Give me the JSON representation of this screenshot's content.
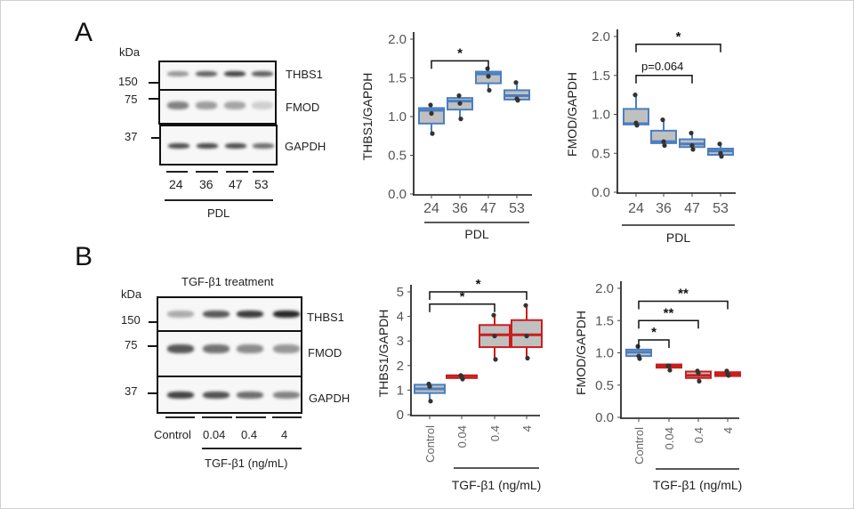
{
  "panels": {
    "A": {
      "letter": "A",
      "blot": {
        "kda_label": "kDa",
        "markers": [
          "150",
          "75",
          "37"
        ],
        "proteins": [
          "THBS1",
          "FMOD",
          "GAPDH"
        ],
        "lanes": [
          "24",
          "36",
          "47",
          "53"
        ],
        "group_label": "PDL",
        "band_intensity": {
          "THBS1": [
            0.45,
            0.7,
            0.85,
            0.72
          ],
          "FMOD": [
            0.55,
            0.42,
            0.38,
            0.18
          ],
          "GAPDH": [
            0.8,
            0.82,
            0.8,
            0.65
          ]
        }
      }
    },
    "B": {
      "letter": "B",
      "blot": {
        "title": "TGF-β1 treatment",
        "kda_label": "kDa",
        "markers": [
          "150",
          "75",
          "37"
        ],
        "proteins": [
          "THBS1",
          "FMOD",
          "GAPDH"
        ],
        "lanes": [
          "Control",
          "0.04",
          "0.4",
          "4"
        ],
        "group_label": "TGF-β1  (ng/mL)",
        "band_intensity": {
          "THBS1": [
            0.35,
            0.75,
            0.88,
            0.98
          ],
          "FMOD": [
            0.75,
            0.62,
            0.5,
            0.45
          ],
          "GAPDH": [
            0.85,
            0.78,
            0.65,
            0.55
          ]
        }
      }
    }
  },
  "chart_data": [
    {
      "id": "A-THBS1",
      "type": "box",
      "ylabel": "THBS1/GAPDH",
      "xlabel": "PDL",
      "categories": [
        "24",
        "36",
        "47",
        "53"
      ],
      "ylim": [
        0,
        2.0
      ],
      "yticks": [
        "0.0",
        "0.5",
        "1.0",
        "1.5",
        "2.0"
      ],
      "ytick_values": [
        0,
        0.5,
        1.0,
        1.5,
        2.0
      ],
      "xtick_rotation": "horizontal",
      "colors": [
        "#4a7fc1",
        "#4a7fc1",
        "#4a7fc1",
        "#4a7fc1"
      ],
      "boxes": [
        {
          "q1": 0.91,
          "median": 1.08,
          "q3": 1.11,
          "min": 0.78,
          "max": 1.15,
          "points": [
            1.15,
            1.04,
            0.78
          ]
        },
        {
          "q1": 1.09,
          "median": 1.2,
          "q3": 1.24,
          "min": 0.97,
          "max": 1.27,
          "points": [
            1.27,
            1.17,
            0.97
          ]
        },
        {
          "q1": 1.43,
          "median": 1.55,
          "q3": 1.58,
          "min": 1.34,
          "max": 1.62,
          "points": [
            1.62,
            1.52,
            1.34
          ]
        },
        {
          "q1": 1.22,
          "median": 1.27,
          "q3": 1.34,
          "min": 1.21,
          "max": 1.44,
          "points": [
            1.44,
            1.23,
            1.21
          ]
        }
      ],
      "annotations": [
        {
          "from": 0,
          "to": 2,
          "label": "*",
          "level": 1.72
        }
      ]
    },
    {
      "id": "A-FMOD",
      "type": "box",
      "ylabel": "FMOD/GAPDH",
      "xlabel": "PDL",
      "categories": [
        "24",
        "36",
        "47",
        "53"
      ],
      "ylim": [
        0,
        2.0
      ],
      "yticks": [
        "0.0",
        "0.5",
        "1.0",
        "1.5",
        "2.0"
      ],
      "ytick_values": [
        0,
        0.5,
        1.0,
        1.5,
        2.0
      ],
      "xtick_rotation": "horizontal",
      "colors": [
        "#4a7fc1",
        "#4a7fc1",
        "#4a7fc1",
        "#4a7fc1"
      ],
      "boxes": [
        {
          "q1": 0.87,
          "median": 0.88,
          "q3": 1.07,
          "min": 0.86,
          "max": 1.25,
          "points": [
            1.25,
            0.89,
            0.86
          ]
        },
        {
          "q1": 0.63,
          "median": 0.65,
          "q3": 0.79,
          "min": 0.6,
          "max": 0.93,
          "points": [
            0.93,
            0.65,
            0.6
          ]
        },
        {
          "q1": 0.58,
          "median": 0.62,
          "q3": 0.68,
          "min": 0.55,
          "max": 0.76,
          "points": [
            0.76,
            0.6,
            0.55
          ]
        },
        {
          "q1": 0.48,
          "median": 0.53,
          "q3": 0.56,
          "min": 0.46,
          "max": 0.62,
          "points": [
            0.62,
            0.5,
            0.46
          ]
        }
      ],
      "annotations": [
        {
          "from": 0,
          "to": 3,
          "label": "*",
          "level": 1.9
        },
        {
          "from": 0,
          "to": 2,
          "label": "p=0.064",
          "level": 1.5
        }
      ]
    },
    {
      "id": "B-THBS1",
      "type": "box",
      "ylabel": "THBS1/GAPDH",
      "xlabel": "TGF-β1  (ng/mL)",
      "categories": [
        "Control",
        "0.04",
        "0.4",
        "4"
      ],
      "ylim": [
        0,
        5
      ],
      "yticks": [
        "0",
        "1",
        "2",
        "3",
        "4",
        "5"
      ],
      "ytick_values": [
        0,
        1,
        2,
        3,
        4,
        5
      ],
      "xtick_rotation": "vertical",
      "colors": [
        "#4a7fc1",
        "#c81e1e",
        "#c81e1e",
        "#c81e1e"
      ],
      "boxes": [
        {
          "q1": 0.88,
          "median": 1.05,
          "q3": 1.22,
          "min": 0.55,
          "max": 1.25,
          "points": [
            1.25,
            1.15,
            0.55
          ]
        },
        {
          "q1": 1.55,
          "median": 1.58,
          "q3": 1.6,
          "min": 1.45,
          "max": 1.6,
          "points": [
            1.6,
            1.55,
            1.45
          ]
        },
        {
          "q1": 2.75,
          "median": 3.25,
          "q3": 3.65,
          "min": 2.25,
          "max": 4.05,
          "points": [
            4.05,
            3.2,
            2.25
          ]
        },
        {
          "q1": 2.75,
          "median": 3.25,
          "q3": 3.85,
          "min": 2.3,
          "max": 4.45,
          "points": [
            4.45,
            3.2,
            2.3
          ]
        }
      ],
      "annotations": [
        {
          "from": 0,
          "to": 3,
          "label": "*",
          "level": 5.0
        },
        {
          "from": 0,
          "to": 2,
          "label": "*",
          "level": 4.5
        }
      ]
    },
    {
      "id": "B-FMOD",
      "type": "box",
      "ylabel": "FMOD/GAPDH",
      "xlabel": "TGF-β1  (ng/mL)",
      "categories": [
        "Control",
        "0.04",
        "0.4",
        "4"
      ],
      "ylim": [
        0,
        2.0
      ],
      "yticks": [
        "0.0",
        "0.5",
        "1.0",
        "1.5",
        "2.0"
      ],
      "ytick_values": [
        0,
        0.5,
        1.0,
        1.5,
        2.0
      ],
      "xtick_rotation": "vertical",
      "colors": [
        "#4a7fc1",
        "#c81e1e",
        "#c81e1e",
        "#c81e1e"
      ],
      "boxes": [
        {
          "q1": 0.95,
          "median": 1.01,
          "q3": 1.05,
          "min": 0.91,
          "max": 1.1,
          "points": [
            1.1,
            0.95,
            0.91
          ]
        },
        {
          "q1": 0.77,
          "median": 0.79,
          "q3": 0.82,
          "min": 0.73,
          "max": 0.8,
          "points": [
            0.8,
            0.8,
            0.73
          ]
        },
        {
          "q1": 0.61,
          "median": 0.65,
          "q3": 0.71,
          "min": 0.56,
          "max": 0.72,
          "points": [
            0.72,
            0.69,
            0.56
          ]
        },
        {
          "q1": 0.64,
          "median": 0.67,
          "q3": 0.7,
          "min": 0.65,
          "max": 0.72,
          "points": [
            0.72,
            0.67,
            0.65
          ]
        }
      ],
      "annotations": [
        {
          "from": 0,
          "to": 3,
          "label": "**",
          "level": 1.8
        },
        {
          "from": 0,
          "to": 2,
          "label": "**",
          "level": 1.5
        },
        {
          "from": 0,
          "to": 1,
          "label": "*",
          "level": 1.2
        }
      ]
    }
  ]
}
